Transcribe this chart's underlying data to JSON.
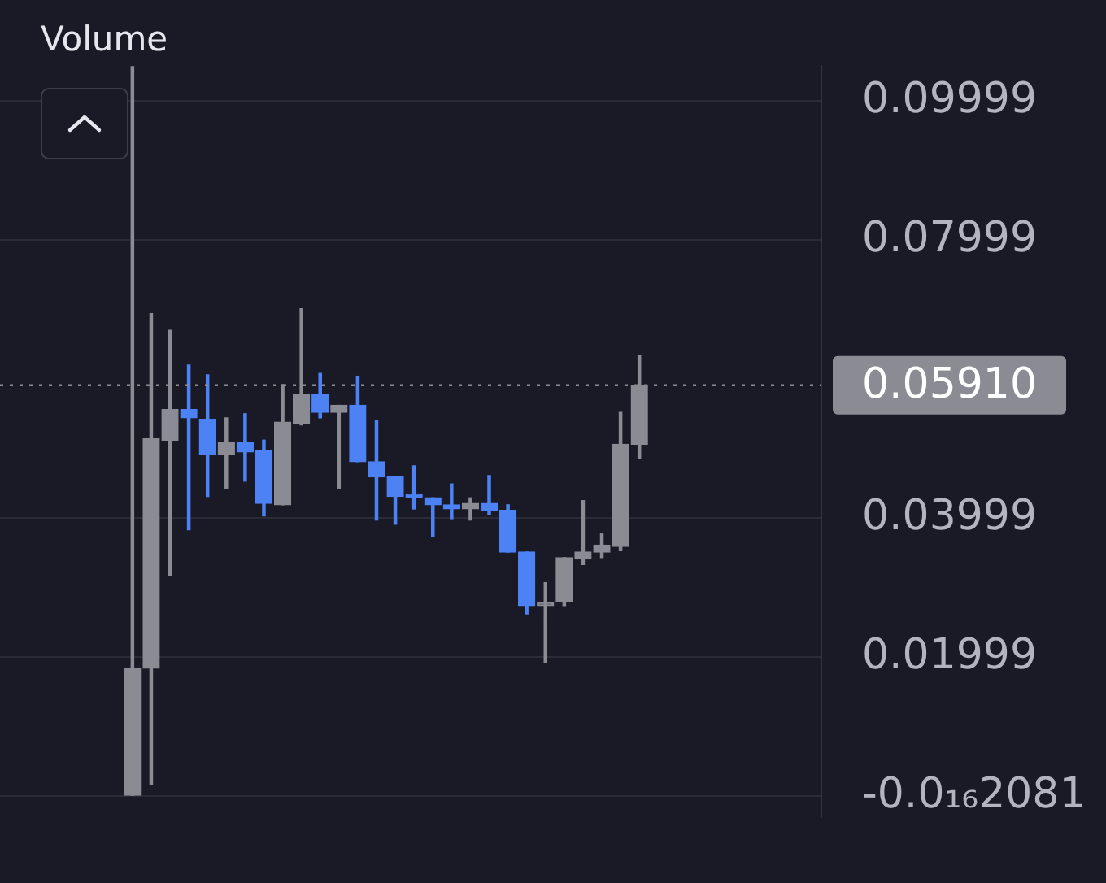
{
  "chart_data": {
    "type": "candlestick",
    "categories": [
      null,
      null,
      null,
      null,
      null,
      null,
      null,
      null,
      null,
      null,
      null,
      null,
      null,
      null,
      null,
      null,
      null,
      null,
      null,
      null,
      null,
      null,
      null,
      null,
      null,
      null,
      null,
      null
    ],
    "ohlc": [
      [
        0,
        0.105,
        0,
        0.0184
      ],
      [
        0.0184,
        0.0694,
        0.0017,
        0.0514
      ],
      [
        0.0512,
        0.067,
        0.0317,
        0.0556
      ],
      [
        0.0556,
        0.062,
        0.0383,
        0.0544
      ],
      [
        0.0542,
        0.0606,
        0.0431,
        0.0491
      ],
      [
        0.0491,
        0.0544,
        0.0443,
        0.0508
      ],
      [
        0.0508,
        0.055,
        0.0453,
        0.0495
      ],
      [
        0.0497,
        0.0512,
        0.0403,
        0.0421
      ],
      [
        0.0419,
        0.0592,
        0.0419,
        0.0538
      ],
      [
        0.0536,
        0.0701,
        0.0534,
        0.0578
      ],
      [
        0.0578,
        0.0608,
        0.0544,
        0.0552
      ],
      [
        0.0552,
        0.0562,
        0.0443,
        0.0562
      ],
      [
        0.0562,
        0.0604,
        0.0481,
        0.0481
      ],
      [
        0.0481,
        0.054,
        0.0397,
        0.0459
      ],
      [
        0.0459,
        0.0459,
        0.0391,
        0.0431
      ],
      [
        0.0432,
        0.0475,
        0.0413,
        0.043
      ],
      [
        0.0429,
        0.0429,
        0.0373,
        0.0419
      ],
      [
        0.0419,
        0.0449,
        0.0399,
        0.0413
      ],
      [
        0.0413,
        0.0429,
        0.0397,
        0.0421
      ],
      [
        0.0421,
        0.0461,
        0.0405,
        0.0411
      ],
      [
        0.0411,
        0.0419,
        0.0351,
        0.0351
      ],
      [
        0.0351,
        0.0351,
        0.0262,
        0.0274
      ],
      [
        0.0274,
        0.0307,
        0.0192,
        0.0278
      ],
      [
        0.028,
        0.0343,
        0.0274,
        0.0343
      ],
      [
        0.0341,
        0.0425,
        0.0333,
        0.0351
      ],
      [
        0.0351,
        0.0377,
        0.0343,
        0.0361
      ],
      [
        0.0359,
        0.0552,
        0.0353,
        0.0506
      ],
      [
        0.0506,
        0.0634,
        0.0485,
        0.0591
      ]
    ],
    "colors": [
      "#8b8b94",
      "#8b8b94",
      "#8b8b94",
      "#4d82f5",
      "#4d82f5",
      "#8b8b94",
      "#4d82f5",
      "#4d82f5",
      "#8b8b94",
      "#8b8b94",
      "#4d82f5",
      "#8b8b94",
      "#4d82f5",
      "#4d82f5",
      "#4d82f5",
      "#4d82f5",
      "#4d82f5",
      "#4d82f5",
      "#8b8b94",
      "#4d82f5",
      "#4d82f5",
      "#4d82f5",
      "#8b8b94",
      "#8b8b94",
      "#8b8b94",
      "#8b8b94",
      "#8b8b94",
      "#8b8b94"
    ],
    "ylim": [
      -0.003,
      0.105
    ],
    "yticks": [
      {
        "value": 0,
        "label": "-0.0₁₆2081"
      },
      {
        "value": 0.01999,
        "label": "0.01999"
      },
      {
        "value": 0.03999,
        "label": "0.03999"
      },
      {
        "value": 0.07999,
        "label": "0.07999"
      },
      {
        "value": 0.09999,
        "label": "0.09999"
      }
    ],
    "ref_lines": [
      {
        "axis": "y",
        "value": 0.0591,
        "label": "0.05910",
        "color": "#8b8b94",
        "line_style": "dotted"
      }
    ],
    "annotations": [
      "Volume"
    ],
    "grid": "y"
  }
}
